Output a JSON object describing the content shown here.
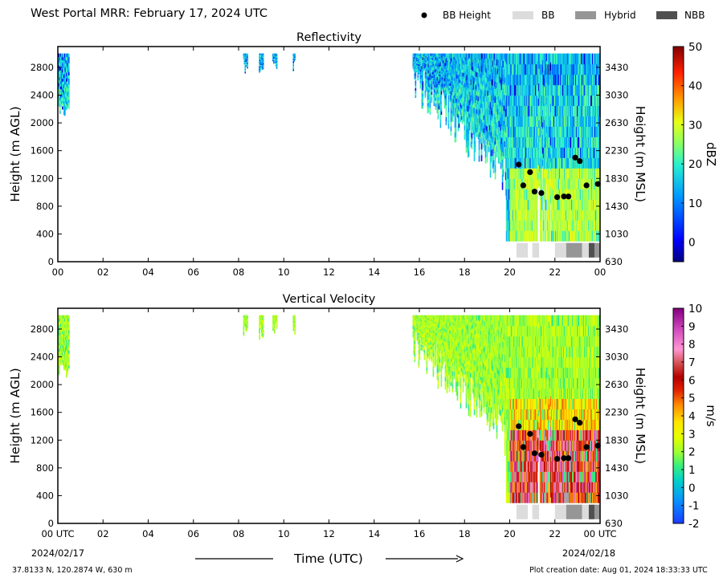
{
  "title": "West Portal MRR:  February 17, 2024 UTC",
  "legend": {
    "bb_height": "BB Height",
    "bb": "BB",
    "hybrid": "Hybrid",
    "nbb": "NBB"
  },
  "colors": {
    "bb": "#dcdcdc",
    "hybrid": "#969696",
    "nbb": "#505050",
    "bb_marker": "#000000"
  },
  "x_axis": {
    "label": "Time (UTC)",
    "ticks": [
      "00 UTC",
      "02",
      "04",
      "06",
      "08",
      "10",
      "12",
      "14",
      "16",
      "18",
      "20",
      "22",
      "00 UTC"
    ],
    "start_date": "2024/02/17",
    "end_date": "2024/02/18"
  },
  "footer": {
    "location": "37.8133 N, 120.2874 W, 630 m",
    "creation": "Plot creation date: Aug 01, 2024 18:33:33 UTC"
  },
  "chart_data": [
    {
      "type": "heatmap",
      "title": "Reflectivity",
      "xlabel": "",
      "ylabel": "Height (m AGL)",
      "ylabel_right": "Height (m MSL)",
      "x_ticks": [
        "00",
        "02",
        "04",
        "06",
        "08",
        "10",
        "12",
        "14",
        "16",
        "18",
        "20",
        "22",
        "00"
      ],
      "xlim": [
        0,
        24
      ],
      "ylim": [
        0,
        3100
      ],
      "y_ticks": [
        0,
        400,
        800,
        1200,
        1600,
        2000,
        2400,
        2800
      ],
      "y_ticks_right": [
        630,
        1030,
        1430,
        1830,
        2230,
        2630,
        3030,
        3430
      ],
      "colorbar": {
        "label": "dBZ",
        "range": [
          -5,
          50
        ],
        "ticks": [
          0,
          10,
          20,
          30,
          40,
          50
        ]
      },
      "echo_segments": [
        {
          "start_hr": 0.0,
          "end_hr": 0.5,
          "top_m": 3000,
          "bottom_m": 2100
        },
        {
          "start_hr": 8.2,
          "end_hr": 8.4,
          "top_m": 3000,
          "bottom_m": 2700
        },
        {
          "start_hr": 8.9,
          "end_hr": 9.1,
          "top_m": 3000,
          "bottom_m": 2650
        },
        {
          "start_hr": 9.5,
          "end_hr": 9.7,
          "top_m": 3000,
          "bottom_m": 2700
        },
        {
          "start_hr": 10.4,
          "end_hr": 10.5,
          "top_m": 3000,
          "bottom_m": 2700
        },
        {
          "start_hr": 15.7,
          "end_hr": 24.0,
          "top_m": 3000,
          "bottom_m": 300
        }
      ],
      "bb_height_points": [
        {
          "time_hr": 20.4,
          "height_m": 1400
        },
        {
          "time_hr": 20.6,
          "height_m": 1100
        },
        {
          "time_hr": 20.9,
          "height_m": 1290
        },
        {
          "time_hr": 21.1,
          "height_m": 1010
        },
        {
          "time_hr": 21.4,
          "height_m": 990
        },
        {
          "time_hr": 22.1,
          "height_m": 930
        },
        {
          "time_hr": 22.4,
          "height_m": 940
        },
        {
          "time_hr": 22.6,
          "height_m": 940
        },
        {
          "time_hr": 22.9,
          "height_m": 1500
        },
        {
          "time_hr": 23.1,
          "height_m": 1450
        },
        {
          "time_hr": 23.4,
          "height_m": 1100
        },
        {
          "time_hr": 23.9,
          "height_m": 1120
        }
      ],
      "bb_type_segments": [
        {
          "start_hr": 20.3,
          "end_hr": 20.8,
          "type": "BB"
        },
        {
          "start_hr": 21.0,
          "end_hr": 21.3,
          "type": "BB"
        },
        {
          "start_hr": 22.0,
          "end_hr": 22.5,
          "type": "BB"
        },
        {
          "start_hr": 22.5,
          "end_hr": 23.2,
          "type": "Hybrid"
        },
        {
          "start_hr": 23.2,
          "end_hr": 23.5,
          "type": "BB"
        },
        {
          "start_hr": 23.5,
          "end_hr": 23.75,
          "type": "NBB"
        },
        {
          "start_hr": 23.75,
          "end_hr": 24.0,
          "type": "Hybrid"
        }
      ]
    },
    {
      "type": "heatmap",
      "title": "Vertical Velocity",
      "xlabel": "Time (UTC)",
      "ylabel": "Height (m AGL)",
      "ylabel_right": "Height (m MSL)",
      "x_ticks": [
        "00 UTC",
        "02",
        "04",
        "06",
        "08",
        "10",
        "12",
        "14",
        "16",
        "18",
        "20",
        "22",
        "00 UTC"
      ],
      "xlim": [
        0,
        24
      ],
      "ylim": [
        0,
        3100
      ],
      "y_ticks": [
        0,
        400,
        800,
        1200,
        1600,
        2000,
        2400,
        2800
      ],
      "y_ticks_right": [
        630,
        1030,
        1430,
        1830,
        2230,
        2630,
        3030,
        3430
      ],
      "colorbar": {
        "label": "m/s",
        "range": [
          -2,
          10
        ],
        "ticks": [
          -2,
          -1,
          0,
          1,
          2,
          3,
          4,
          5,
          6,
          7,
          8,
          9,
          10
        ]
      },
      "echo_segments": [
        {
          "start_hr": 0.0,
          "end_hr": 0.5,
          "top_m": 3000,
          "bottom_m": 2100
        },
        {
          "start_hr": 8.2,
          "end_hr": 8.4,
          "top_m": 3000,
          "bottom_m": 2700
        },
        {
          "start_hr": 8.9,
          "end_hr": 9.1,
          "top_m": 3000,
          "bottom_m": 2650
        },
        {
          "start_hr": 9.5,
          "end_hr": 9.7,
          "top_m": 3000,
          "bottom_m": 2700
        },
        {
          "start_hr": 10.4,
          "end_hr": 10.5,
          "top_m": 3000,
          "bottom_m": 2700
        },
        {
          "start_hr": 15.7,
          "end_hr": 24.0,
          "top_m": 3000,
          "bottom_m": 300
        }
      ],
      "bb_height_points": [
        {
          "time_hr": 20.4,
          "height_m": 1400
        },
        {
          "time_hr": 20.6,
          "height_m": 1100
        },
        {
          "time_hr": 20.9,
          "height_m": 1290
        },
        {
          "time_hr": 21.1,
          "height_m": 1010
        },
        {
          "time_hr": 21.4,
          "height_m": 990
        },
        {
          "time_hr": 22.1,
          "height_m": 930
        },
        {
          "time_hr": 22.4,
          "height_m": 940
        },
        {
          "time_hr": 22.6,
          "height_m": 940
        },
        {
          "time_hr": 22.9,
          "height_m": 1500
        },
        {
          "time_hr": 23.1,
          "height_m": 1450
        },
        {
          "time_hr": 23.4,
          "height_m": 1100
        },
        {
          "time_hr": 23.9,
          "height_m": 1120
        }
      ],
      "bb_type_segments": [
        {
          "start_hr": 20.3,
          "end_hr": 20.8,
          "type": "BB"
        },
        {
          "start_hr": 21.0,
          "end_hr": 21.3,
          "type": "BB"
        },
        {
          "start_hr": 22.0,
          "end_hr": 22.5,
          "type": "BB"
        },
        {
          "start_hr": 22.5,
          "end_hr": 23.2,
          "type": "Hybrid"
        },
        {
          "start_hr": 23.2,
          "end_hr": 23.5,
          "type": "BB"
        },
        {
          "start_hr": 23.5,
          "end_hr": 23.75,
          "type": "NBB"
        },
        {
          "start_hr": 23.75,
          "end_hr": 24.0,
          "type": "Hybrid"
        }
      ]
    }
  ]
}
